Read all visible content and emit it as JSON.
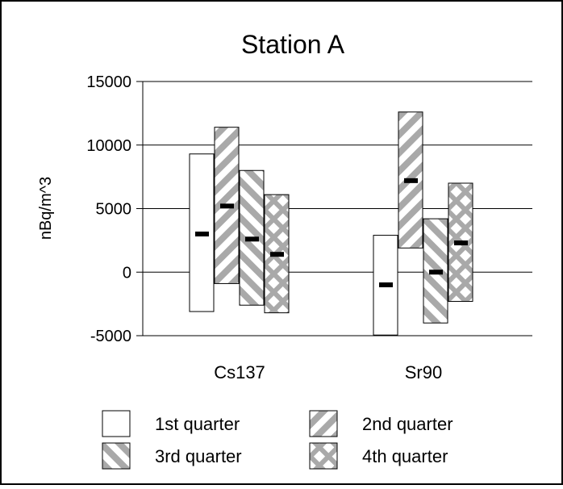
{
  "chart_data": {
    "type": "floating-bar",
    "title": "Station A",
    "xlabel": "",
    "ylabel": "nBq/m^3",
    "ylim": [
      -5000,
      15000
    ],
    "yticks": [
      15000,
      10000,
      5000,
      0,
      -5000
    ],
    "ytick_labels": [
      "15000",
      "10000",
      "5000",
      "0",
      "-5000"
    ],
    "grid": "horizontal",
    "legend_position": "bottom",
    "categories": [
      "Cs137",
      "Sr90"
    ],
    "series": [
      {
        "name": "1st quarter",
        "pattern": "plain",
        "low": [
          -3100,
          -4950
        ],
        "high": [
          9300,
          2900
        ],
        "mean": [
          3000,
          -1000
        ]
      },
      {
        "name": "2nd quarter",
        "pattern": "diagonal-up",
        "low": [
          -900,
          1900
        ],
        "high": [
          11400,
          12600
        ],
        "mean": [
          5200,
          7200
        ]
      },
      {
        "name": "3rd quarter",
        "pattern": "diagonal-down",
        "low": [
          -2600,
          -4000
        ],
        "high": [
          8000,
          4200
        ],
        "mean": [
          2600,
          0
        ]
      },
      {
        "name": "4th quarter",
        "pattern": "cross",
        "low": [
          -3200,
          -2300
        ],
        "high": [
          6100,
          7000
        ],
        "mean": [
          1400,
          2300
        ]
      }
    ]
  }
}
